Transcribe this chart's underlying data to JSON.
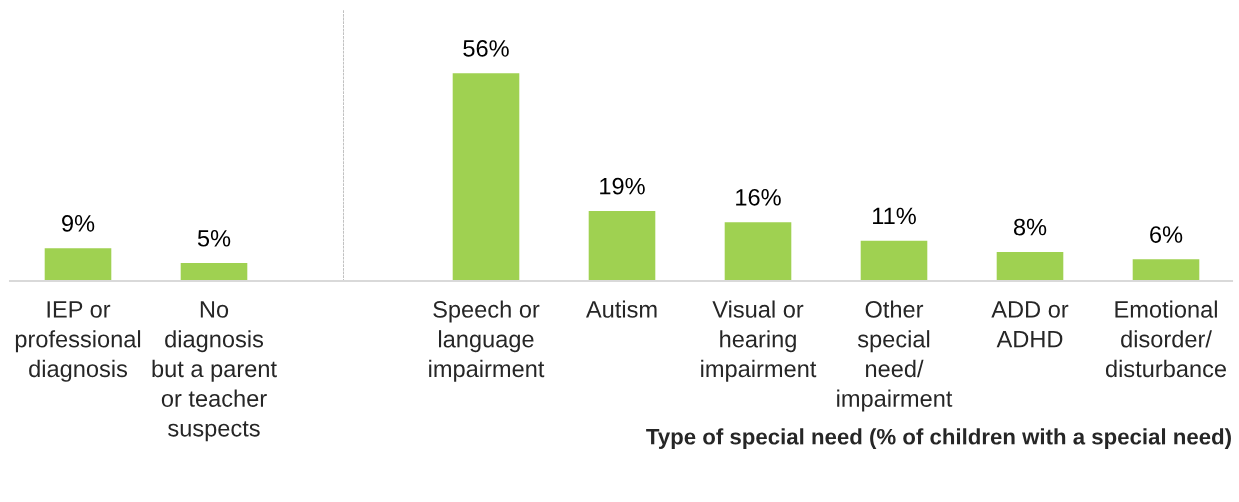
{
  "chart_data": [
    {
      "type": "bar",
      "categories": [
        "IEP or\nprofessional\ndiagnosis",
        "No\ndiagnosis\nbut a parent\nor teacher\nsuspects"
      ],
      "values": [
        9,
        5
      ],
      "value_labels": [
        "9%",
        "5%"
      ],
      "color": "#9fd151",
      "tick_labels": "x"
    },
    {
      "type": "bar",
      "categories": [
        "Speech or\nlanguage\nimpairment",
        "Autism",
        "Visual or\nhearing\nimpairment",
        "Other\nspecial\nneed/\nimpairment",
        "ADD or\nADHD",
        "Emotional\ndisorder/\ndisturbance"
      ],
      "values": [
        56,
        19,
        16,
        11,
        8,
        6
      ],
      "value_labels": [
        "56%",
        "19%",
        "16%",
        "11%",
        "8%",
        "6%"
      ],
      "color": "#9fd151",
      "tick_labels": "x",
      "xlabel": "Type of special need (% of children with a special need)"
    }
  ]
}
